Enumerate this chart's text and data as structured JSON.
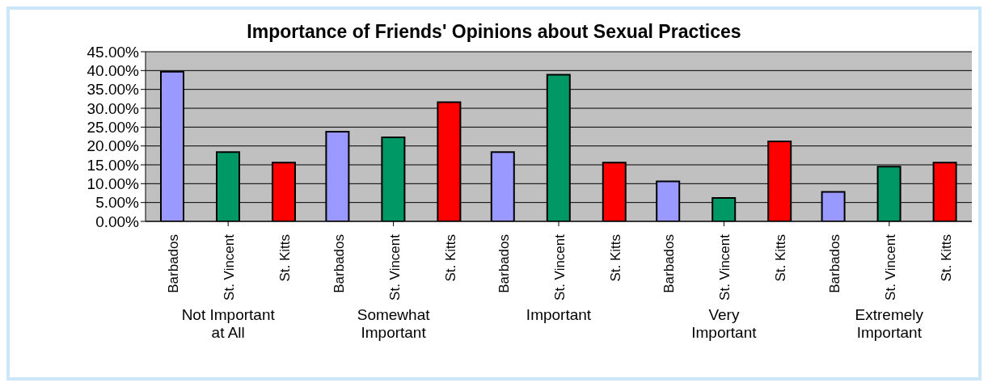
{
  "chart_data": {
    "type": "bar",
    "title": "Importance of Friends' Opinions about Sexual Practices",
    "categories": [
      "Not Important at All",
      "Somewhat Important",
      "Important",
      "Very Important",
      "Extremely Important"
    ],
    "series": [
      {
        "name": "Barbados",
        "color": "#9999ff",
        "values": [
          39.7,
          23.8,
          18.4,
          10.6,
          7.8
        ]
      },
      {
        "name": "St. Vincent",
        "color": "#009966",
        "values": [
          18.4,
          22.3,
          38.9,
          6.2,
          14.5
        ]
      },
      {
        "name": "St. Kitts",
        "color": "#ff0000",
        "values": [
          15.6,
          31.6,
          15.6,
          21.2,
          15.6
        ]
      }
    ],
    "ylim": [
      0,
      45
    ],
    "yticks": [
      {
        "value": 0,
        "label": "0.00%"
      },
      {
        "value": 5,
        "label": "5.00%"
      },
      {
        "value": 10,
        "label": "10.00%"
      },
      {
        "value": 15,
        "label": "15.00%"
      },
      {
        "value": 20,
        "label": "20.00%"
      },
      {
        "value": 25,
        "label": "25.00%"
      },
      {
        "value": 30,
        "label": "30.00%"
      },
      {
        "value": 35,
        "label": "35.00%"
      },
      {
        "value": 40,
        "label": "40.00%"
      },
      {
        "value": 45,
        "label": "45.00%"
      }
    ],
    "grid": "y"
  }
}
